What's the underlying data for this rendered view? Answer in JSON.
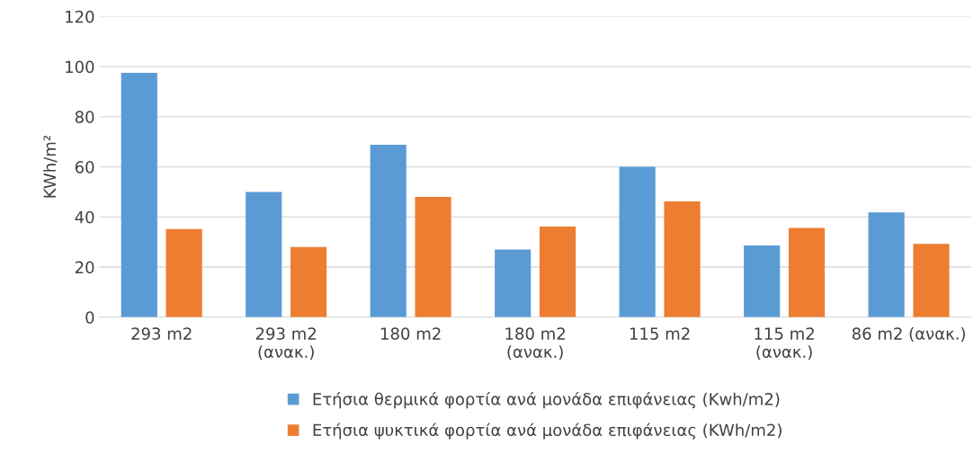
{
  "chart_data": {
    "type": "bar",
    "ylabel": "KWh/m²",
    "categories": [
      "293 m2",
      "293 m2\n(ανακ.)",
      "180 m2",
      "180 m2\n(ανακ.)",
      "115 m2",
      "115 m2\n(ανακ.)",
      "86 m2 (ανακ.)"
    ],
    "series": [
      {
        "name": "Ετήσια θερμικά φορτία ανά μονάδα επιφάνειας (Kwh/m2)",
        "color": "#5b9bd5",
        "values": [
          97.5,
          50,
          68.8,
          27,
          60,
          28.6,
          41.8
        ]
      },
      {
        "name": "Ετήσια ψυκτικά φορτία ανά μονάδα επιφάνειας (KWh/m2)",
        "color": "#ed7d31",
        "values": [
          35.2,
          28,
          48,
          36.2,
          46.2,
          35.6,
          29.3
        ]
      }
    ],
    "ylim": [
      0,
      120
    ],
    "yticks": [
      0,
      20,
      40,
      60,
      80,
      100,
      120
    ],
    "grid": "y",
    "legend": "bottom"
  }
}
